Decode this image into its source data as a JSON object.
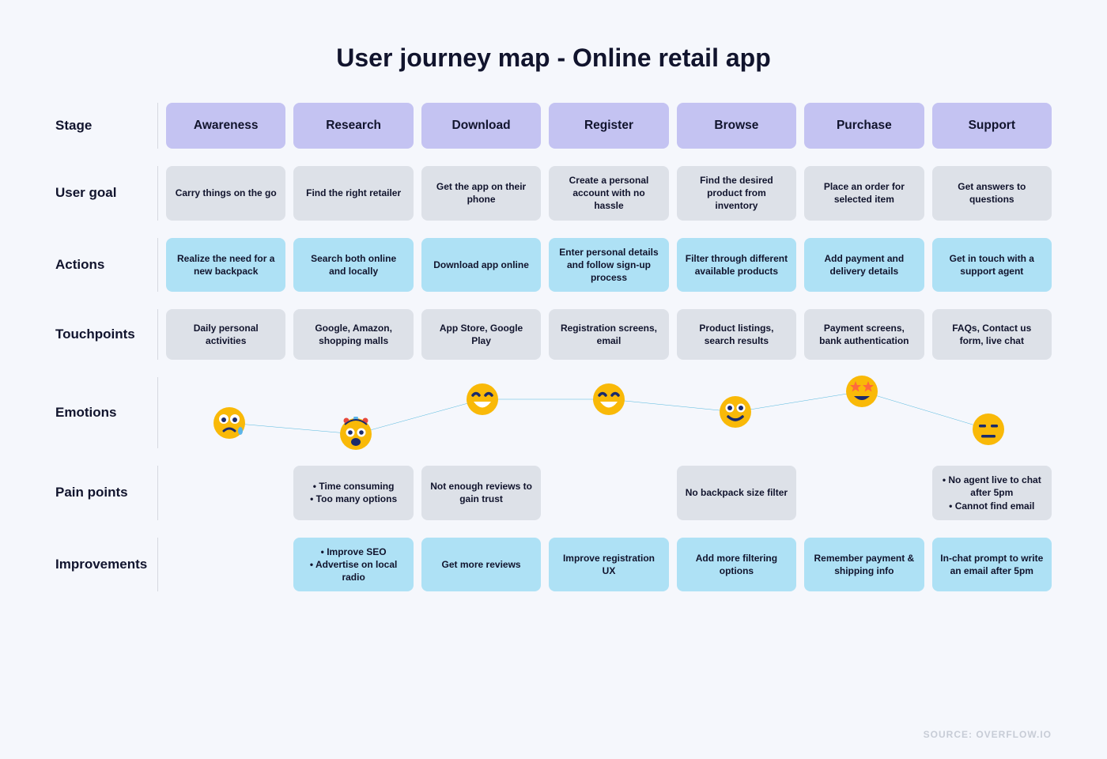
{
  "title": "User journey map - Online retail app",
  "source_label": "SOURCE: OVERFLOW.IO",
  "colors": {
    "page_bg": "#f5f7fc",
    "title_color": "#11142d",
    "rowlabel_color": "#11142d",
    "stage_bg": "#c4c3f2",
    "stage_text": "#11142d",
    "neutral_bg": "#dde1e8",
    "neutral_text": "#11142d",
    "accent_bg": "#aee1f5",
    "accent_text": "#11142d",
    "emotion_line": "#2aa7d6",
    "divider": "#d6d9e0"
  },
  "layout": {
    "columns": 7,
    "row_order": [
      "stage",
      "user_goal",
      "actions",
      "touchpoints",
      "emotions",
      "pain_points",
      "improvements"
    ],
    "emotion_canvas_height": 90
  },
  "row_labels": {
    "stage": "Stage",
    "user_goal": "User goal",
    "actions": "Actions",
    "touchpoints": "Touchpoints",
    "emotions": "Emotions",
    "pain_points": "Pain points",
    "improvements": "Improvements"
  },
  "row_styles": {
    "stage": {
      "bg_key": "stage_bg",
      "text_key": "stage_text",
      "class": "stage"
    },
    "user_goal": {
      "bg_key": "neutral_bg",
      "text_key": "neutral_text"
    },
    "actions": {
      "bg_key": "accent_bg",
      "text_key": "accent_text"
    },
    "touchpoints": {
      "bg_key": "neutral_bg",
      "text_key": "neutral_text"
    },
    "pain_points": {
      "bg_key": "neutral_bg",
      "text_key": "neutral_text"
    },
    "improvements": {
      "bg_key": "accent_bg",
      "text_key": "accent_text"
    }
  },
  "stages": [
    {
      "name": "Awareness",
      "user_goal": "Carry things on the go",
      "actions": "Realize the need for a new backpack",
      "touchpoints": "Daily personal activities",
      "pain_points": null,
      "improvements": null,
      "emotion": {
        "face": "worried",
        "y": 58
      }
    },
    {
      "name": "Research",
      "user_goal": "Find the right retailer",
      "actions": "Search both online and locally",
      "touchpoints": "Google, Amazon, shopping malls",
      "pain_points": "• Time consuming\n• Too many options",
      "improvements": "• Improve SEO\n• Advertise on local radio",
      "emotion": {
        "face": "exploding",
        "y": 72
      }
    },
    {
      "name": "Download",
      "user_goal": "Get the app on their phone",
      "actions": "Download app online",
      "touchpoints": "App Store, Google Play",
      "pain_points": "Not enough reviews to gain trust",
      "improvements": "Get more reviews",
      "emotion": {
        "face": "grin",
        "y": 28
      }
    },
    {
      "name": "Register",
      "user_goal": "Create a personal account with no hassle",
      "actions": "Enter personal details and follow sign-up process",
      "touchpoints": "Registration screens, email",
      "pain_points": null,
      "improvements": "Improve registration UX",
      "emotion": {
        "face": "grin",
        "y": 28
      }
    },
    {
      "name": "Browse",
      "user_goal": "Find the desired product from inventory",
      "actions": "Filter through different available products",
      "touchpoints": "Product listings, search results",
      "pain_points": "No backpack size filter",
      "improvements": "Add more filtering options",
      "emotion": {
        "face": "smile",
        "y": 44
      }
    },
    {
      "name": "Purchase",
      "user_goal": "Place an order for selected item",
      "actions": "Add payment and delivery details",
      "touchpoints": "Payment screens, bank authentication",
      "pain_points": null,
      "improvements": "Remember payment & shipping info",
      "emotion": {
        "face": "stareyes",
        "y": 18
      }
    },
    {
      "name": "Support",
      "user_goal": "Get answers to questions",
      "actions": "Get in touch with a support agent",
      "touchpoints": "FAQs, Contact us form, live chat",
      "pain_points": "• No agent live to chat after 5pm\n• Cannot find email",
      "improvements": "In-chat prompt to write an email after 5pm",
      "emotion": {
        "face": "expressionless",
        "y": 66
      }
    }
  ],
  "emotion_faces": {
    "base_fill": "#f9b908",
    "feature_fill": "#1a2a6c",
    "white": "#ffffff",
    "red": "#e6483d",
    "star_fill": "#ff6a3d"
  }
}
